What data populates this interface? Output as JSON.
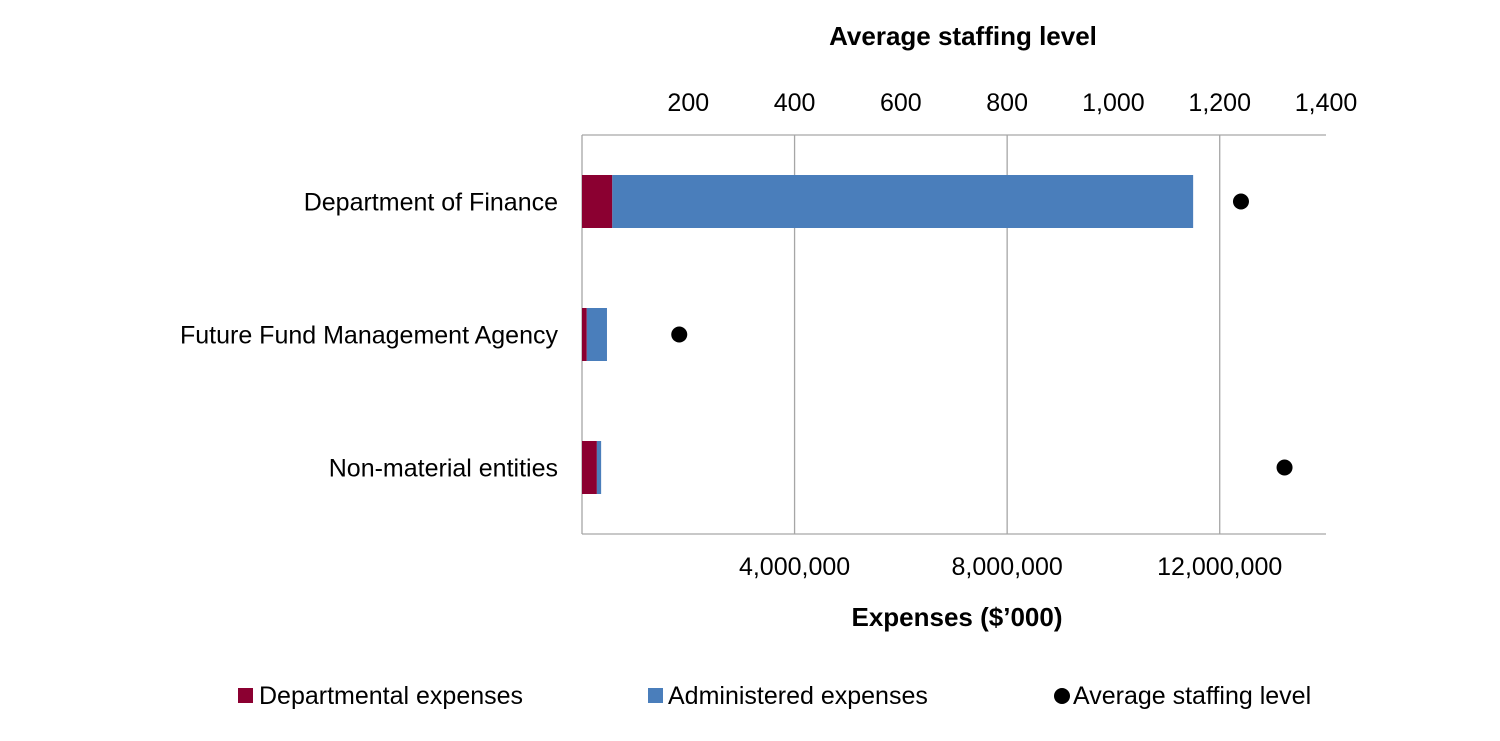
{
  "chart_data": {
    "type": "bar",
    "orientation": "horizontal",
    "stacked": true,
    "categories": [
      "Department of Finance",
      "Future Fund Management Agency",
      "Non-material entities"
    ],
    "series": [
      {
        "name": "Departmental expenses",
        "color": "#8B0031",
        "values": [
          570000,
          90000,
          280000
        ]
      },
      {
        "name": "Administered expenses",
        "color": "#4A7EBB",
        "values": [
          10930000,
          380000,
          80000
        ]
      }
    ],
    "staffing": {
      "name": "Average staffing level",
      "color": "#000000",
      "values": [
        1240,
        183,
        1322
      ]
    },
    "x_bottom": {
      "label": "Expenses ($’000)",
      "range": [
        0,
        14000000
      ],
      "ticks": [
        4000000,
        8000000,
        12000000
      ],
      "tick_labels": [
        "4,000,000",
        "8,000,000",
        "12,000,000"
      ]
    },
    "x_top": {
      "label": "Average staffing level",
      "range": [
        0,
        1400
      ],
      "ticks": [
        200,
        400,
        600,
        800,
        1000,
        1200,
        1400
      ],
      "tick_labels": [
        "200",
        "400",
        "600",
        "800",
        "1,000",
        "1,200",
        "1,400"
      ]
    },
    "grid": true,
    "legend_position": "bottom"
  }
}
